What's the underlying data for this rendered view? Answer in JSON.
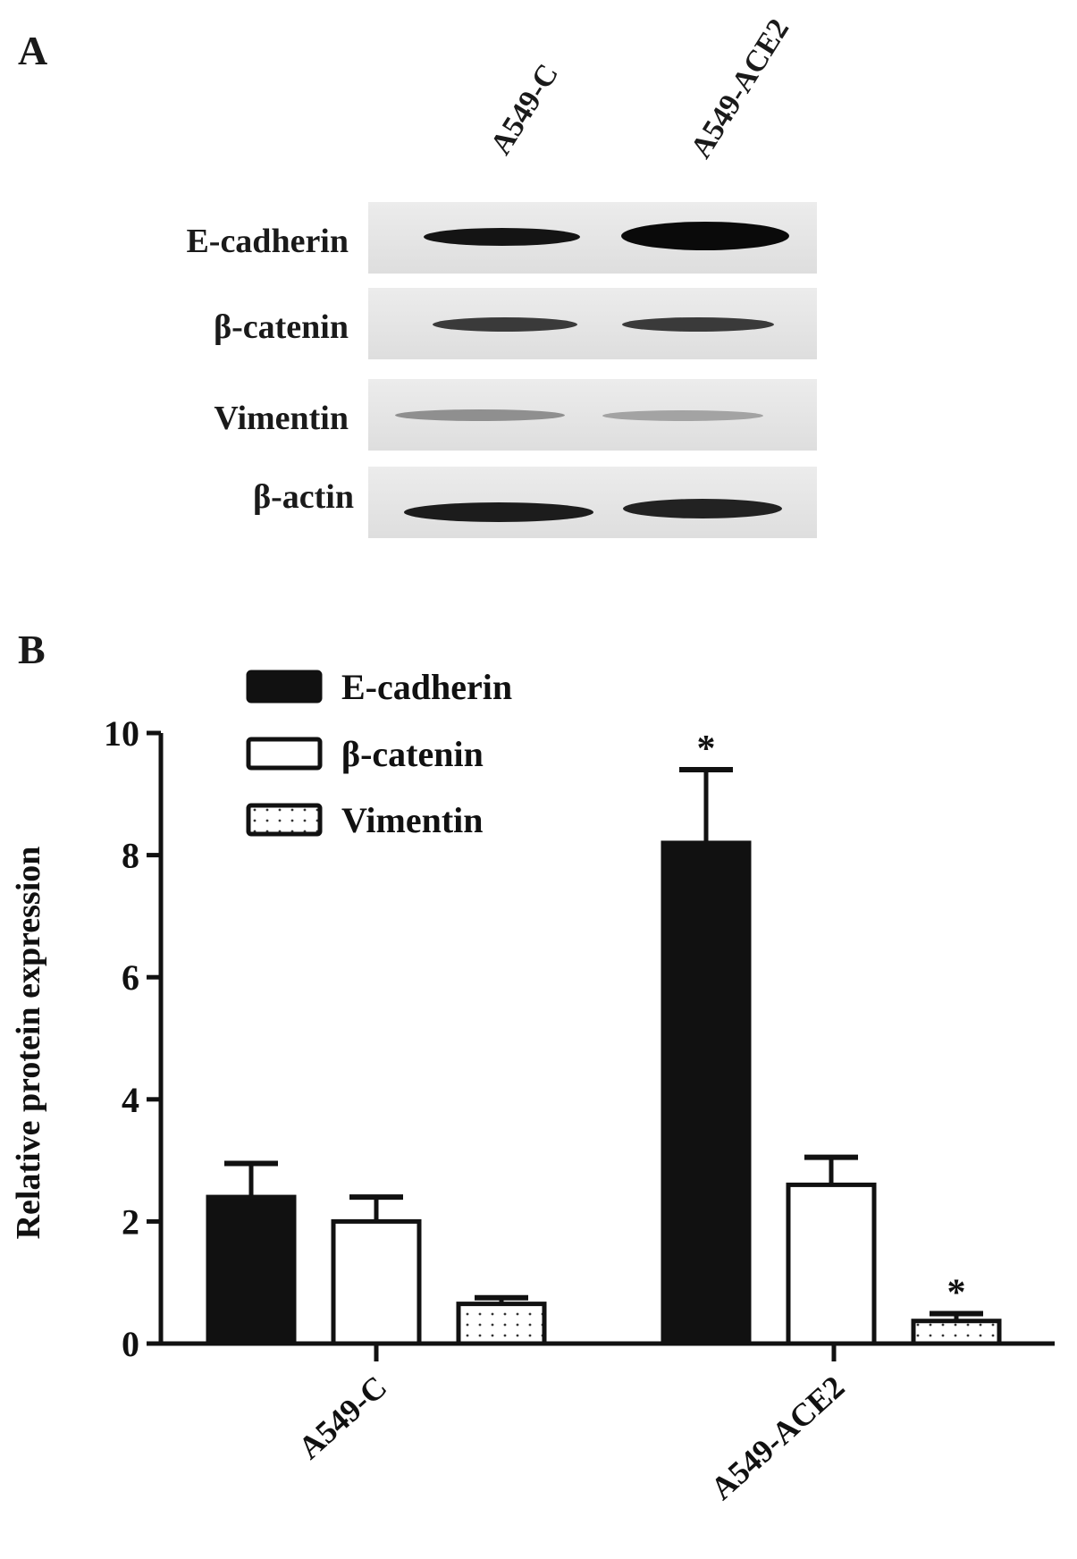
{
  "panel_a": {
    "letter": "A",
    "lanes": [
      "A549-C",
      "A549-ACE2"
    ],
    "rows": [
      {
        "label": "E-cadherin"
      },
      {
        "label": "β-catenin"
      },
      {
        "label": "Vimentin"
      },
      {
        "label": "β-actin"
      }
    ]
  },
  "panel_b": {
    "letter": "B"
  },
  "chart_data": {
    "type": "bar",
    "categories": [
      "A549-C",
      "A549-ACE2"
    ],
    "series": [
      {
        "name": "E-cadherin",
        "values": [
          2.4,
          8.2
        ],
        "errors": [
          0.55,
          1.2
        ],
        "significant": [
          false,
          true
        ],
        "fill": "#111111"
      },
      {
        "name": "β-catenin",
        "values": [
          2.0,
          2.6
        ],
        "errors": [
          0.4,
          0.45
        ],
        "significant": [
          false,
          false
        ],
        "fill": "#ffffff"
      },
      {
        "name": "Vimentin",
        "values": [
          0.65,
          0.37
        ],
        "errors": [
          0.1,
          0.12
        ],
        "significant": [
          false,
          true
        ],
        "fill": "dotted"
      }
    ],
    "ylabel": "Relative protein expression",
    "xlabel": "",
    "ylim": [
      0,
      10
    ],
    "yticks": [
      0,
      2,
      4,
      6,
      8,
      10
    ],
    "significance_marker": "*",
    "legend_position": "top-left",
    "grid": false
  }
}
